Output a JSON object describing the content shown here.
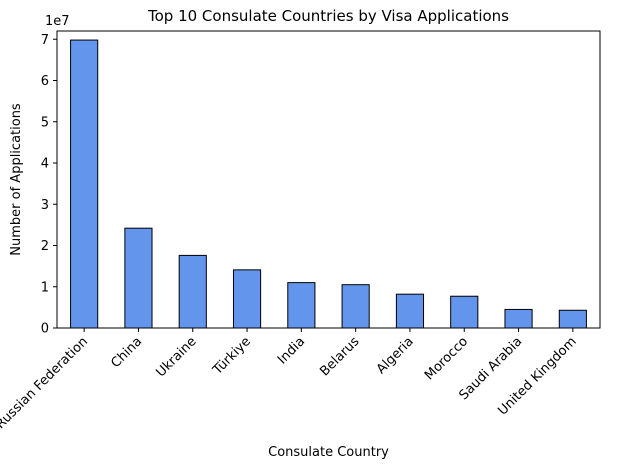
{
  "chart_data": {
    "type": "bar",
    "title": "Top 10 Consulate Countries by Visa Applications",
    "xlabel": "Consulate Country",
    "ylabel": "Number of Applications",
    "y_offset_label": "1e7",
    "categories": [
      "Russian Federation",
      "China",
      "Ukraine",
      "Türkiye",
      "India",
      "Belarus",
      "Algeria",
      "Morocco",
      "Saudi Arabia",
      "United Kingdom"
    ],
    "values": [
      69800000,
      24200000,
      17600000,
      14100000,
      11000000,
      10500000,
      8200000,
      7700000,
      4500000,
      4300000
    ],
    "ylim": [
      0,
      72000000
    ],
    "yticks": [
      0,
      10000000,
      20000000,
      30000000,
      40000000,
      50000000,
      60000000,
      70000000
    ],
    "ytick_labels": [
      "0",
      "1",
      "2",
      "3",
      "4",
      "5",
      "6",
      "7"
    ],
    "grid": false,
    "bar_color": "#6495ED",
    "edge_color": "#000000"
  }
}
